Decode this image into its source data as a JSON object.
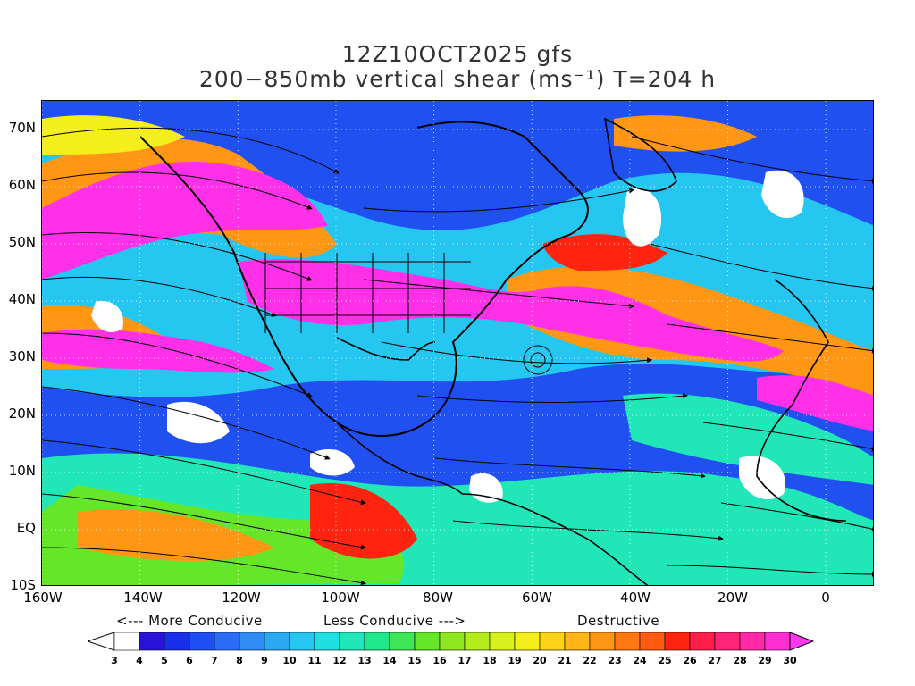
{
  "title": {
    "line1": "12Z10OCT2025 gfs",
    "line2": "200−850mb vertical shear (ms⁻¹) T=204 h"
  },
  "axes": {
    "y_labels": [
      "70N",
      "60N",
      "50N",
      "40N",
      "30N",
      "20N",
      "10N",
      "EQ",
      "10S"
    ],
    "x_labels": [
      "160W",
      "140W",
      "120W",
      "100W",
      "80W",
      "60W",
      "40W",
      "20W",
      "0"
    ],
    "lat_range": [
      -10,
      75
    ],
    "lon_range": [
      -160,
      10
    ]
  },
  "conducive": {
    "more": "<--- More Conducive",
    "less": "Less Conducive --->",
    "destructive": "Destructive"
  },
  "colorbar": {
    "labels": [
      "3",
      "4",
      "5",
      "6",
      "7",
      "8",
      "9",
      "10",
      "11",
      "12",
      "13",
      "14",
      "15",
      "16",
      "17",
      "18",
      "19",
      "20",
      "21",
      "22",
      "23",
      "24",
      "25",
      "26",
      "27",
      "28",
      "29",
      "30"
    ],
    "colors": [
      "#ffffff",
      "#2a13d9",
      "#1a2fe8",
      "#1f4ff2",
      "#2a6cf5",
      "#2f8cf5",
      "#2aa9f2",
      "#25c6ef",
      "#20dfe0",
      "#20e6b8",
      "#22e88c",
      "#3fe65a",
      "#66e628",
      "#8fe81f",
      "#b4ec1e",
      "#d8f01e",
      "#f4ee1c",
      "#ffd21a",
      "#ffb418",
      "#ff9614",
      "#ff7812",
      "#ff5a10",
      "#ff2410",
      "#ff1e4a",
      "#ff2478",
      "#ff2aa6",
      "#ff30d2",
      "#ff36f2"
    ]
  },
  "fill_colors": {
    "white": "#ffffff",
    "blue": "#2050f0",
    "cyan": "#25c6ef",
    "teal": "#20e6b8",
    "green": "#66e628",
    "yellow": "#f4ee1c",
    "orange": "#ff9614",
    "red": "#ff2410",
    "magenta": "#ff30e8"
  }
}
